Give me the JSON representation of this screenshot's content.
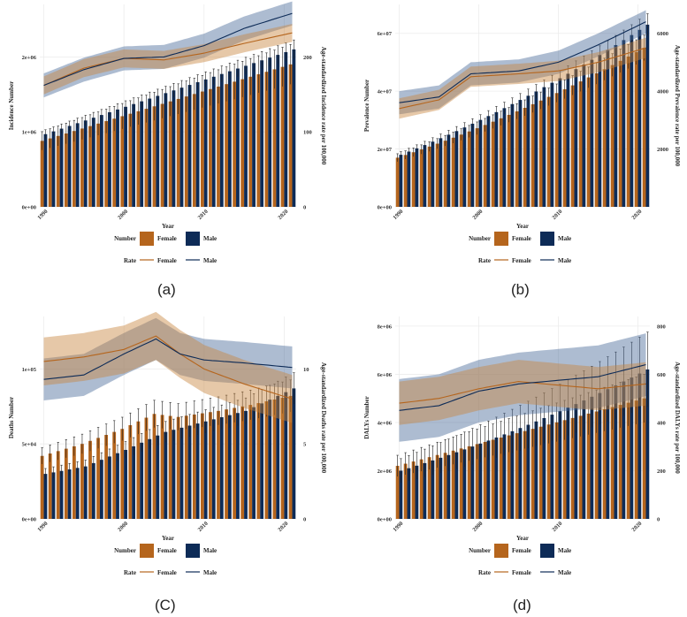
{
  "legend_text": {
    "number_title": "Number",
    "rate_title": "Rate",
    "female": "Female",
    "male": "Male",
    "female_color": "#b5651d",
    "male_color": "#0d2b57"
  },
  "chart_data": [
    {
      "type": "bar",
      "panel_label": "(a)",
      "xlabel": "Year",
      "ylabel_left": "Incidence Number",
      "ylabel_right": "Age-standardized Incidence rate per 100,000",
      "x_ticks": [
        1990,
        2000,
        2010,
        2020
      ],
      "x_range": [
        1990,
        2021
      ],
      "y_left_range": [
        0,
        2700000
      ],
      "y_left_ticks": [
        {
          "value": 0,
          "label": "0e+00"
        },
        {
          "value": 1000000,
          "label": "1e+06"
        },
        {
          "value": 2000000,
          "label": "2e+06"
        }
      ],
      "y_right_range": [
        0,
        270
      ],
      "y_right_ticks": [
        {
          "value": 0,
          "label": "0"
        },
        {
          "value": 100,
          "label": "100"
        },
        {
          "value": 200,
          "label": "200"
        }
      ],
      "series": [
        {
          "name": "Female",
          "kind": "number",
          "start": 880000,
          "end": 1900000,
          "shape": "linear",
          "err": 0.14
        },
        {
          "name": "Male",
          "kind": "number",
          "start": 970000,
          "end": 2100000,
          "shape": "linear",
          "err": 0.06
        },
        {
          "name": "Female",
          "kind": "rate",
          "points": [
            [
              1990,
              162
            ],
            [
              1995,
              185
            ],
            [
              2000,
              198
            ],
            [
              2005,
              196
            ],
            [
              2010,
              205
            ],
            [
              2015,
              218
            ],
            [
              2021,
              232
            ]
          ],
          "band": 12
        },
        {
          "name": "Male",
          "kind": "rate",
          "points": [
            [
              1990,
              162
            ],
            [
              1995,
              183
            ],
            [
              2000,
              198
            ],
            [
              2005,
              200
            ],
            [
              2010,
              215
            ],
            [
              2015,
              238
            ],
            [
              2021,
              258
            ]
          ],
          "band": 16
        }
      ]
    },
    {
      "type": "bar",
      "panel_label": "(b)",
      "xlabel": "Year",
      "ylabel_left": "Prevalence Number",
      "ylabel_right": "Age-standardized Prevalence rate per 100,000",
      "x_ticks": [
        1990,
        2000,
        2010,
        2020
      ],
      "x_range": [
        1990,
        2021
      ],
      "y_left_range": [
        0,
        70000000
      ],
      "y_left_ticks": [
        {
          "value": 0,
          "label": "0e+00"
        },
        {
          "value": 20000000,
          "label": "2e+07"
        },
        {
          "value": 40000000,
          "label": "4e+07"
        },
        {
          "value": 60000000,
          "label": "6e+07"
        }
      ],
      "y_right_range": [
        0,
        7000
      ],
      "y_right_ticks": [
        {
          "value": 2000,
          "label": "2000"
        },
        {
          "value": 4000,
          "label": "4000"
        },
        {
          "value": 6000,
          "label": "6000"
        }
      ],
      "series": [
        {
          "name": "Female",
          "kind": "number",
          "start": 17000000,
          "end": 55000000,
          "shape": "convex",
          "err": 0.08
        },
        {
          "name": "Male",
          "kind": "number",
          "start": 18000000,
          "end": 63000000,
          "shape": "convex",
          "err": 0.06
        },
        {
          "name": "Female",
          "kind": "rate",
          "points": [
            [
              1990,
              3400
            ],
            [
              1995,
              3700
            ],
            [
              1999,
              4500
            ],
            [
              2005,
              4600
            ],
            [
              2010,
              4700
            ],
            [
              2015,
              5000
            ],
            [
              2021,
              5500
            ]
          ],
          "band": 350
        },
        {
          "name": "Male",
          "kind": "rate",
          "points": [
            [
              1990,
              3600
            ],
            [
              1995,
              3800
            ],
            [
              1999,
              4600
            ],
            [
              2005,
              4700
            ],
            [
              2010,
              5000
            ],
            [
              2015,
              5600
            ],
            [
              2021,
              6400
            ]
          ],
          "band": 400
        }
      ]
    },
    {
      "type": "bar",
      "panel_label": "(C)",
      "xlabel": "Year",
      "ylabel_left": "Deaths Number",
      "ylabel_right": "Age-standardized Deaths rate per 100,000",
      "x_ticks": [
        1990,
        2000,
        2010,
        2020
      ],
      "x_range": [
        1990,
        2021
      ],
      "y_left_range": [
        0,
        135000
      ],
      "y_left_ticks": [
        {
          "value": 0,
          "label": "0e+00"
        },
        {
          "value": 50000,
          "label": "5e+04"
        },
        {
          "value": 100000,
          "label": "1e+05"
        }
      ],
      "y_right_range": [
        0,
        13.5
      ],
      "y_right_ticks": [
        {
          "value": 0,
          "label": "0"
        },
        {
          "value": 5,
          "label": "5"
        },
        {
          "value": 10,
          "label": "10"
        }
      ],
      "series": [
        {
          "name": "Female",
          "kind": "number",
          "points": [
            [
              1990,
              42000
            ],
            [
              1995,
              50000
            ],
            [
              2000,
              60000
            ],
            [
              2004,
              70000
            ],
            [
              2007,
              68000
            ],
            [
              2012,
              72000
            ],
            [
              2016,
              76000
            ],
            [
              2021,
              82000
            ]
          ],
          "err": 0.13
        },
        {
          "name": "Male",
          "kind": "number",
          "points": [
            [
              1990,
              30000
            ],
            [
              1995,
              35000
            ],
            [
              2000,
              46000
            ],
            [
              2005,
              58000
            ],
            [
              2010,
              65000
            ],
            [
              2015,
              72000
            ],
            [
              2021,
              87000
            ]
          ],
          "err": 0.12
        },
        {
          "name": "Female",
          "kind": "rate",
          "points": [
            [
              1990,
              10.5
            ],
            [
              1995,
              10.8
            ],
            [
              2000,
              11.3
            ],
            [
              2004,
              12.2
            ],
            [
              2007,
              11.0
            ],
            [
              2010,
              10.0
            ],
            [
              2015,
              9.0
            ],
            [
              2021,
              8.0
            ]
          ],
          "band": 1.6
        },
        {
          "name": "Male",
          "kind": "rate",
          "points": [
            [
              1990,
              9.3
            ],
            [
              1995,
              9.6
            ],
            [
              2000,
              11.0
            ],
            [
              2004,
              12.0
            ],
            [
              2007,
              11.0
            ],
            [
              2010,
              10.6
            ],
            [
              2015,
              10.4
            ],
            [
              2021,
              10.1
            ]
          ],
          "band": 1.4
        }
      ]
    },
    {
      "type": "bar",
      "panel_label": "(d)",
      "xlabel": "Year",
      "ylabel_left": "DALYs Number",
      "ylabel_right": "Age-standardized DALYs rate per 100,000",
      "x_ticks": [
        1990,
        2000,
        2010,
        2020
      ],
      "x_range": [
        1990,
        2021
      ],
      "y_left_range": [
        0,
        8400000
      ],
      "y_left_ticks": [
        {
          "value": 0,
          "label": "0e+00"
        },
        {
          "value": 2000000,
          "label": "2e+06"
        },
        {
          "value": 4000000,
          "label": "4e+06"
        },
        {
          "value": 6000000,
          "label": "6e+06"
        },
        {
          "value": 8000000,
          "label": "8e+06"
        }
      ],
      "y_right_range": [
        0,
        840
      ],
      "y_right_ticks": [
        {
          "value": 0,
          "label": "0"
        },
        {
          "value": 200,
          "label": "200"
        },
        {
          "value": 400,
          "label": "400"
        },
        {
          "value": 600,
          "label": "600"
        },
        {
          "value": 800,
          "label": "800"
        }
      ],
      "series": [
        {
          "name": "Female",
          "kind": "number",
          "start": 2200000,
          "end": 5000000,
          "shape": "linear",
          "err": 0.2
        },
        {
          "name": "Male",
          "kind": "number",
          "start": 2000000,
          "end": 6200000,
          "shape": "convex",
          "err": 0.25
        },
        {
          "name": "Female",
          "kind": "rate",
          "points": [
            [
              1990,
              480
            ],
            [
              1995,
              500
            ],
            [
              2000,
              540
            ],
            [
              2005,
              570
            ],
            [
              2010,
              555
            ],
            [
              2015,
              540
            ],
            [
              2021,
              560
            ]
          ],
          "band": 90
        },
        {
          "name": "Male",
          "kind": "rate",
          "points": [
            [
              1990,
              450
            ],
            [
              1995,
              470
            ],
            [
              2000,
              530
            ],
            [
              2005,
              560
            ],
            [
              2010,
              575
            ],
            [
              2015,
              590
            ],
            [
              2021,
              640
            ]
          ],
          "band": 130
        }
      ]
    }
  ]
}
